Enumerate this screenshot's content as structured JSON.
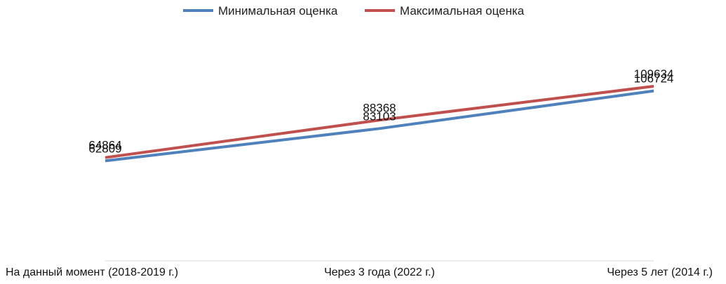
{
  "chart_data": {
    "type": "line",
    "categories": [
      "На данный момент (2018-2019 г.)",
      "Через 3 года (2022 г.)",
      "Через 5 лет (2014 г.)"
    ],
    "series": [
      {
        "name": "Минимальная оценка",
        "values": [
          62809,
          83103,
          106724
        ],
        "color": "#4f81bd"
      },
      {
        "name": "Максимальная оценка",
        "values": [
          64864,
          88368,
          109634
        ],
        "color": "#c0504d"
      }
    ],
    "ylim": [
      0,
      155000
    ],
    "grid": false,
    "legend_position": "top-center",
    "axis_color": "#d9d9d9"
  }
}
